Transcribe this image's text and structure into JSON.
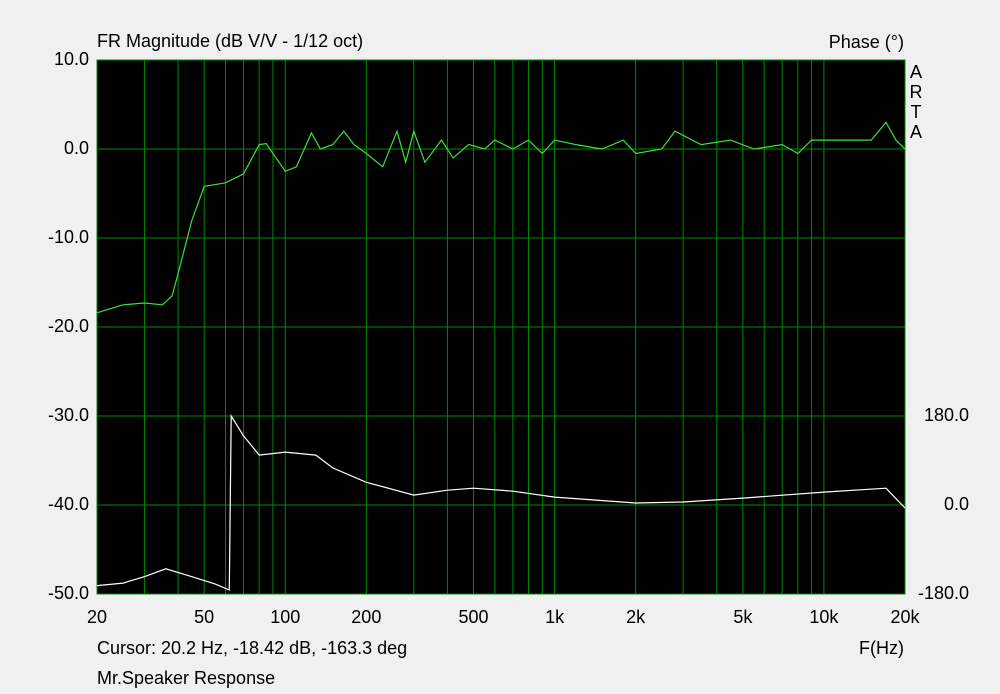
{
  "chart_data": {
    "type": "line",
    "title": "FR Magnitude (dB V/V - 1/12 oct)",
    "y2_label": "Phase (°)",
    "watermark": "ARTA",
    "x_label": "F(Hz)",
    "cursor": "Cursor: 20.2 Hz, -18.42 dB, -163.3 deg",
    "footer": "Mr.Speaker Response",
    "log_x": true,
    "grid": true,
    "xlim": [
      20,
      20000
    ],
    "xticks": [
      20,
      50,
      100,
      200,
      500,
      {
        "value": 1000,
        "label": "1k"
      },
      {
        "value": 2000,
        "label": "2k"
      },
      {
        "value": 5000,
        "label": "5k"
      },
      {
        "value": 10000,
        "label": "10k"
      },
      {
        "value": 20000,
        "label": "20k"
      }
    ],
    "xminorticks": [
      30,
      40,
      60,
      70,
      80,
      90,
      300,
      400,
      600,
      700,
      800,
      900,
      3000,
      4000,
      6000,
      7000,
      8000,
      9000
    ],
    "ylim": [
      -50,
      10
    ],
    "yticks": [
      {
        "value": 10,
        "label": "10.0"
      },
      {
        "value": 0,
        "label": "0.0"
      },
      {
        "value": -10,
        "label": "-10.0"
      },
      {
        "value": -20,
        "label": "-20.0"
      },
      {
        "value": -30,
        "label": "-30.0"
      },
      {
        "value": -40,
        "label": "-40.0"
      },
      {
        "value": -50,
        "label": "-50.0"
      }
    ],
    "y2lim": [
      -180,
      900
    ],
    "y2ticks": [
      {
        "value": 180,
        "label": "180.0"
      },
      {
        "value": 0,
        "label": "0.0"
      },
      {
        "value": -180,
        "label": "-180.0"
      }
    ],
    "series": [
      {
        "name": "Magnitude",
        "color": "#3ce03c",
        "x": [
          20,
          25,
          30,
          35,
          38,
          40,
          45,
          50,
          60,
          70,
          80,
          85,
          90,
          100,
          110,
          125,
          135,
          150,
          165,
          180,
          200,
          230,
          260,
          280,
          300,
          330,
          380,
          420,
          480,
          550,
          600,
          700,
          800,
          900,
          1000,
          1200,
          1500,
          1800,
          2000,
          2500,
          2800,
          3500,
          4500,
          5500,
          7000,
          8000,
          9000,
          12000,
          15000,
          17000,
          18500,
          20000
        ],
        "values": [
          -18.4,
          -17.5,
          -17.3,
          -17.5,
          -16.5,
          -14,
          -8,
          -4.2,
          -3.8,
          -2.8,
          0.5,
          0.6,
          -0.5,
          -2.5,
          -2.0,
          1.8,
          0.0,
          0.5,
          2.0,
          0.5,
          -0.5,
          -2.0,
          2.0,
          -1.5,
          2.0,
          -1.5,
          1.0,
          -1.0,
          0.5,
          0.0,
          1.0,
          0.0,
          1.0,
          -0.5,
          1.0,
          0.5,
          0.0,
          1.0,
          -0.5,
          0.0,
          2.0,
          0.5,
          1.0,
          0.0,
          0.5,
          -0.5,
          1.0,
          1.0,
          1.0,
          3.0,
          1.0,
          0.0
        ]
      },
      {
        "name": "Phase",
        "color": "#ffffff",
        "axis": "y2",
        "x": [
          20,
          25,
          30,
          36,
          45,
          55,
          62,
          63,
          70,
          80,
          100,
          130,
          150,
          200,
          300,
          400,
          500,
          700,
          1000,
          2000,
          3000,
          5000,
          10000,
          17000,
          20000
        ],
        "values": [
          -163,
          -158,
          -145,
          -129,
          -145,
          -160,
          -172,
          180,
          140,
          101,
          107,
          101,
          75,
          46,
          20,
          30,
          34,
          28,
          16,
          4,
          6,
          14,
          26,
          34,
          -6
        ]
      }
    ]
  }
}
